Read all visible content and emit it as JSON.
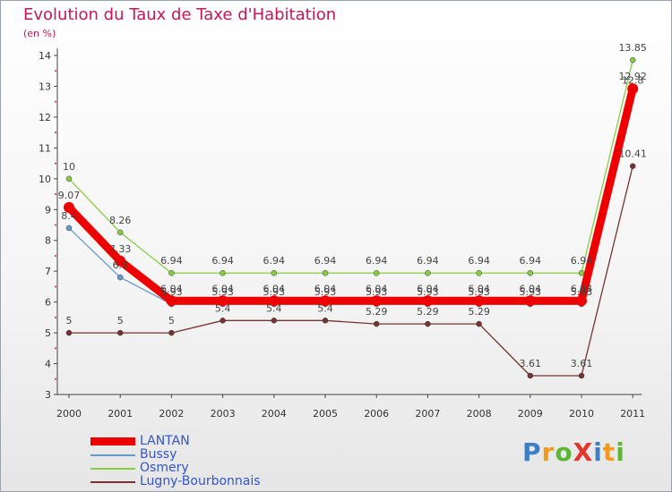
{
  "chart_data": {
    "type": "line",
    "title": "Evolution du Taux de Taxe d'Habitation",
    "ylabel": "(en %)",
    "xlabel": "",
    "categories": [
      "2000",
      "2001",
      "2002",
      "2003",
      "2004",
      "2005",
      "2006",
      "2007",
      "2008",
      "2009",
      "2010",
      "2011"
    ],
    "ylim": [
      3,
      14
    ],
    "yticks": [
      3,
      4,
      5,
      6,
      7,
      8,
      9,
      10,
      11,
      12,
      13,
      14
    ],
    "grid": false,
    "legend_position": "bottom-left",
    "series": [
      {
        "name": "LANTAN",
        "color": "#ee0000",
        "values": [
          9.07,
          7.33,
          6.04,
          6.04,
          6.04,
          6.04,
          6.04,
          6.04,
          6.04,
          6.04,
          6.04,
          12.92
        ],
        "labels": [
          "9.07",
          "7.33",
          "6.04",
          "6.04",
          "6.04",
          "6.04",
          "6.04",
          "6.04",
          "6.04",
          "6.04",
          "6.04",
          "12.92"
        ]
      },
      {
        "name": "Bussy",
        "color": "#6699cc",
        "values": [
          8.4,
          6.8,
          5.93,
          5.93,
          5.93,
          5.93,
          5.93,
          5.93,
          5.93,
          5.93,
          5.93,
          12.8
        ],
        "labels": [
          "8.4",
          "6.8",
          "5.93",
          "5.93",
          "5.93",
          "5.93",
          "5.93",
          "5.93",
          "5.93",
          "5.93",
          "5.93",
          "12.8"
        ]
      },
      {
        "name": "Osmery",
        "color": "#88cc44",
        "values": [
          10,
          8.26,
          6.94,
          6.94,
          6.94,
          6.94,
          6.94,
          6.94,
          6.94,
          6.94,
          6.94,
          13.85
        ],
        "labels": [
          "10",
          "8.26",
          "6.94",
          "6.94",
          "6.94",
          "6.94",
          "6.94",
          "6.94",
          "6.94",
          "6.94",
          "6.94",
          "13.85"
        ]
      },
      {
        "name": "Lugny-Bourbonnais",
        "color": "#773333",
        "values": [
          5,
          5,
          5,
          5.4,
          5.4,
          5.4,
          5.29,
          5.29,
          5.29,
          3.61,
          3.61,
          10.41
        ],
        "labels": [
          "5",
          "5",
          "5",
          "5.4",
          "5.4",
          "5.4",
          "5.29",
          "5.29",
          "5.29",
          "3.61",
          "3.61",
          "10.41"
        ]
      }
    ]
  },
  "brand": {
    "text": "ProXiti",
    "letters": [
      "P",
      "r",
      "o",
      "X",
      "i",
      "t",
      "i"
    ],
    "colors": [
      "#3a7fc8",
      "#f29a1d",
      "#5cb832",
      "#e2352b",
      "#3a7fc8",
      "#f29a1d",
      "#5cb832"
    ]
  }
}
